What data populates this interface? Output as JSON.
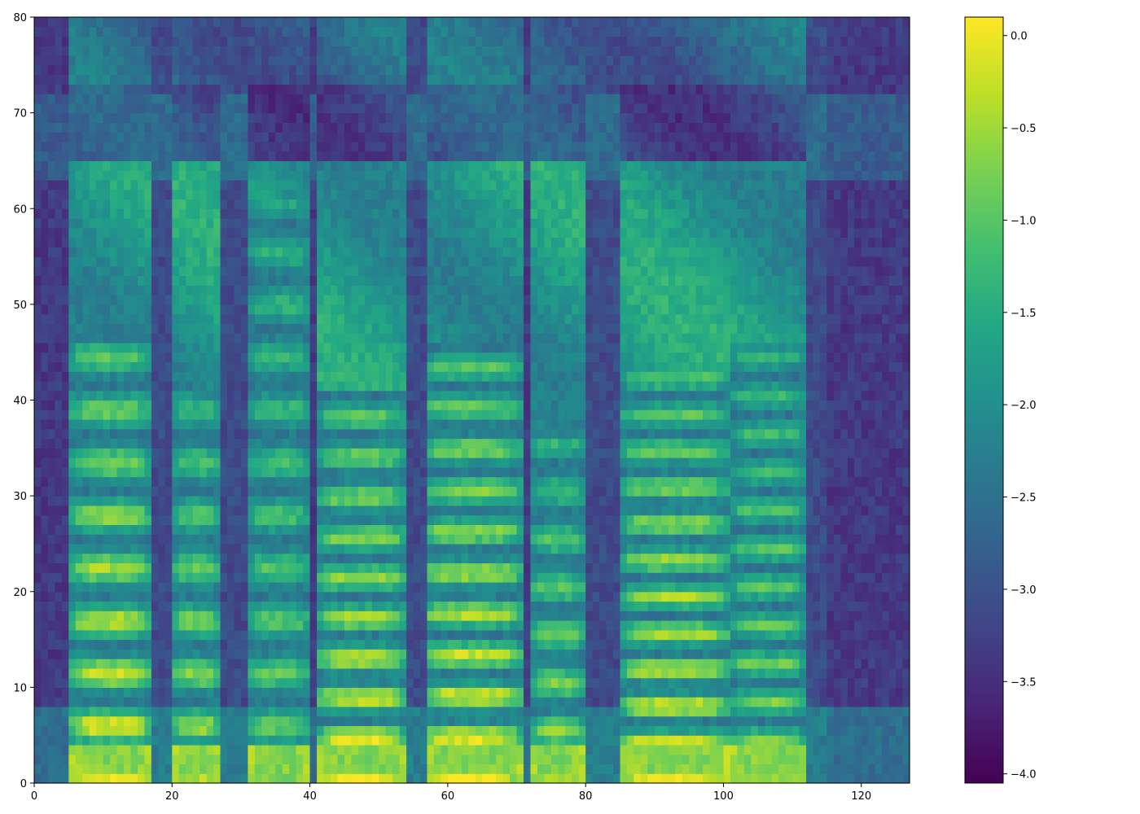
{
  "chart_data": {
    "type": "heatmap",
    "title": "",
    "xlabel": "",
    "ylabel": "",
    "xlim": [
      0,
      127
    ],
    "ylim": [
      0,
      80
    ],
    "n_frames": 127,
    "n_bins": 80,
    "x_ticks": [
      "0",
      "20",
      "40",
      "60",
      "80",
      "100",
      "120"
    ],
    "y_ticks": [
      "0",
      "10",
      "20",
      "30",
      "40",
      "50",
      "60",
      "70",
      "80"
    ],
    "colorbar": {
      "colormap": "viridis",
      "vmin": -4.05,
      "vmax": 0.1,
      "ticks": [
        "0.0",
        "−0.5",
        "−1.0",
        "−1.5",
        "−2.0",
        "−2.5",
        "−3.0",
        "−3.5",
        "−4.0"
      ],
      "tick_values": [
        0.0,
        -0.5,
        -1.0,
        -1.5,
        -2.0,
        -2.5,
        -3.0,
        -3.5,
        -4.0
      ]
    },
    "segments": [
      {
        "type": "silence",
        "start": 0,
        "end": 4
      },
      {
        "type": "voiced",
        "start": 5,
        "end": 16,
        "f0_bin": 5.5,
        "upper_bin": 45,
        "peak": 0.05
      },
      {
        "type": "gap",
        "start": 17,
        "end": 19
      },
      {
        "type": "voiced",
        "start": 20,
        "end": 26,
        "f0_bin": 5.5,
        "upper_bin": 40,
        "peak": -0.4
      },
      {
        "type": "gap",
        "start": 27,
        "end": 30
      },
      {
        "type": "voiced",
        "start": 31,
        "end": 39,
        "f0_bin": 5.5,
        "upper_bin": 60,
        "peak": -0.8
      },
      {
        "type": "voiced",
        "start": 41,
        "end": 53,
        "f0_bin": 4.2,
        "upper_bin": 40,
        "peak": 0.05
      },
      {
        "type": "gap",
        "start": 54,
        "end": 56
      },
      {
        "type": "voiced",
        "start": 56,
        "end": 70,
        "f0_bin": 4.3,
        "upper_bin": 45,
        "peak": 0.05
      },
      {
        "type": "voiced",
        "start": 72,
        "end": 79,
        "f0_bin": 5,
        "upper_bin": 35,
        "peak": -0.5
      },
      {
        "type": "gap",
        "start": 80,
        "end": 84
      },
      {
        "type": "voiced",
        "start": 85,
        "end": 100,
        "f0_bin": 3.8,
        "upper_bin": 42,
        "peak": 0.05
      },
      {
        "type": "voiced",
        "start": 101,
        "end": 111,
        "f0_bin": 4,
        "upper_bin": 45,
        "peak": -0.6
      },
      {
        "type": "gap",
        "start": 112,
        "end": 114
      },
      {
        "type": "silence",
        "start": 115,
        "end": 127
      }
    ]
  }
}
